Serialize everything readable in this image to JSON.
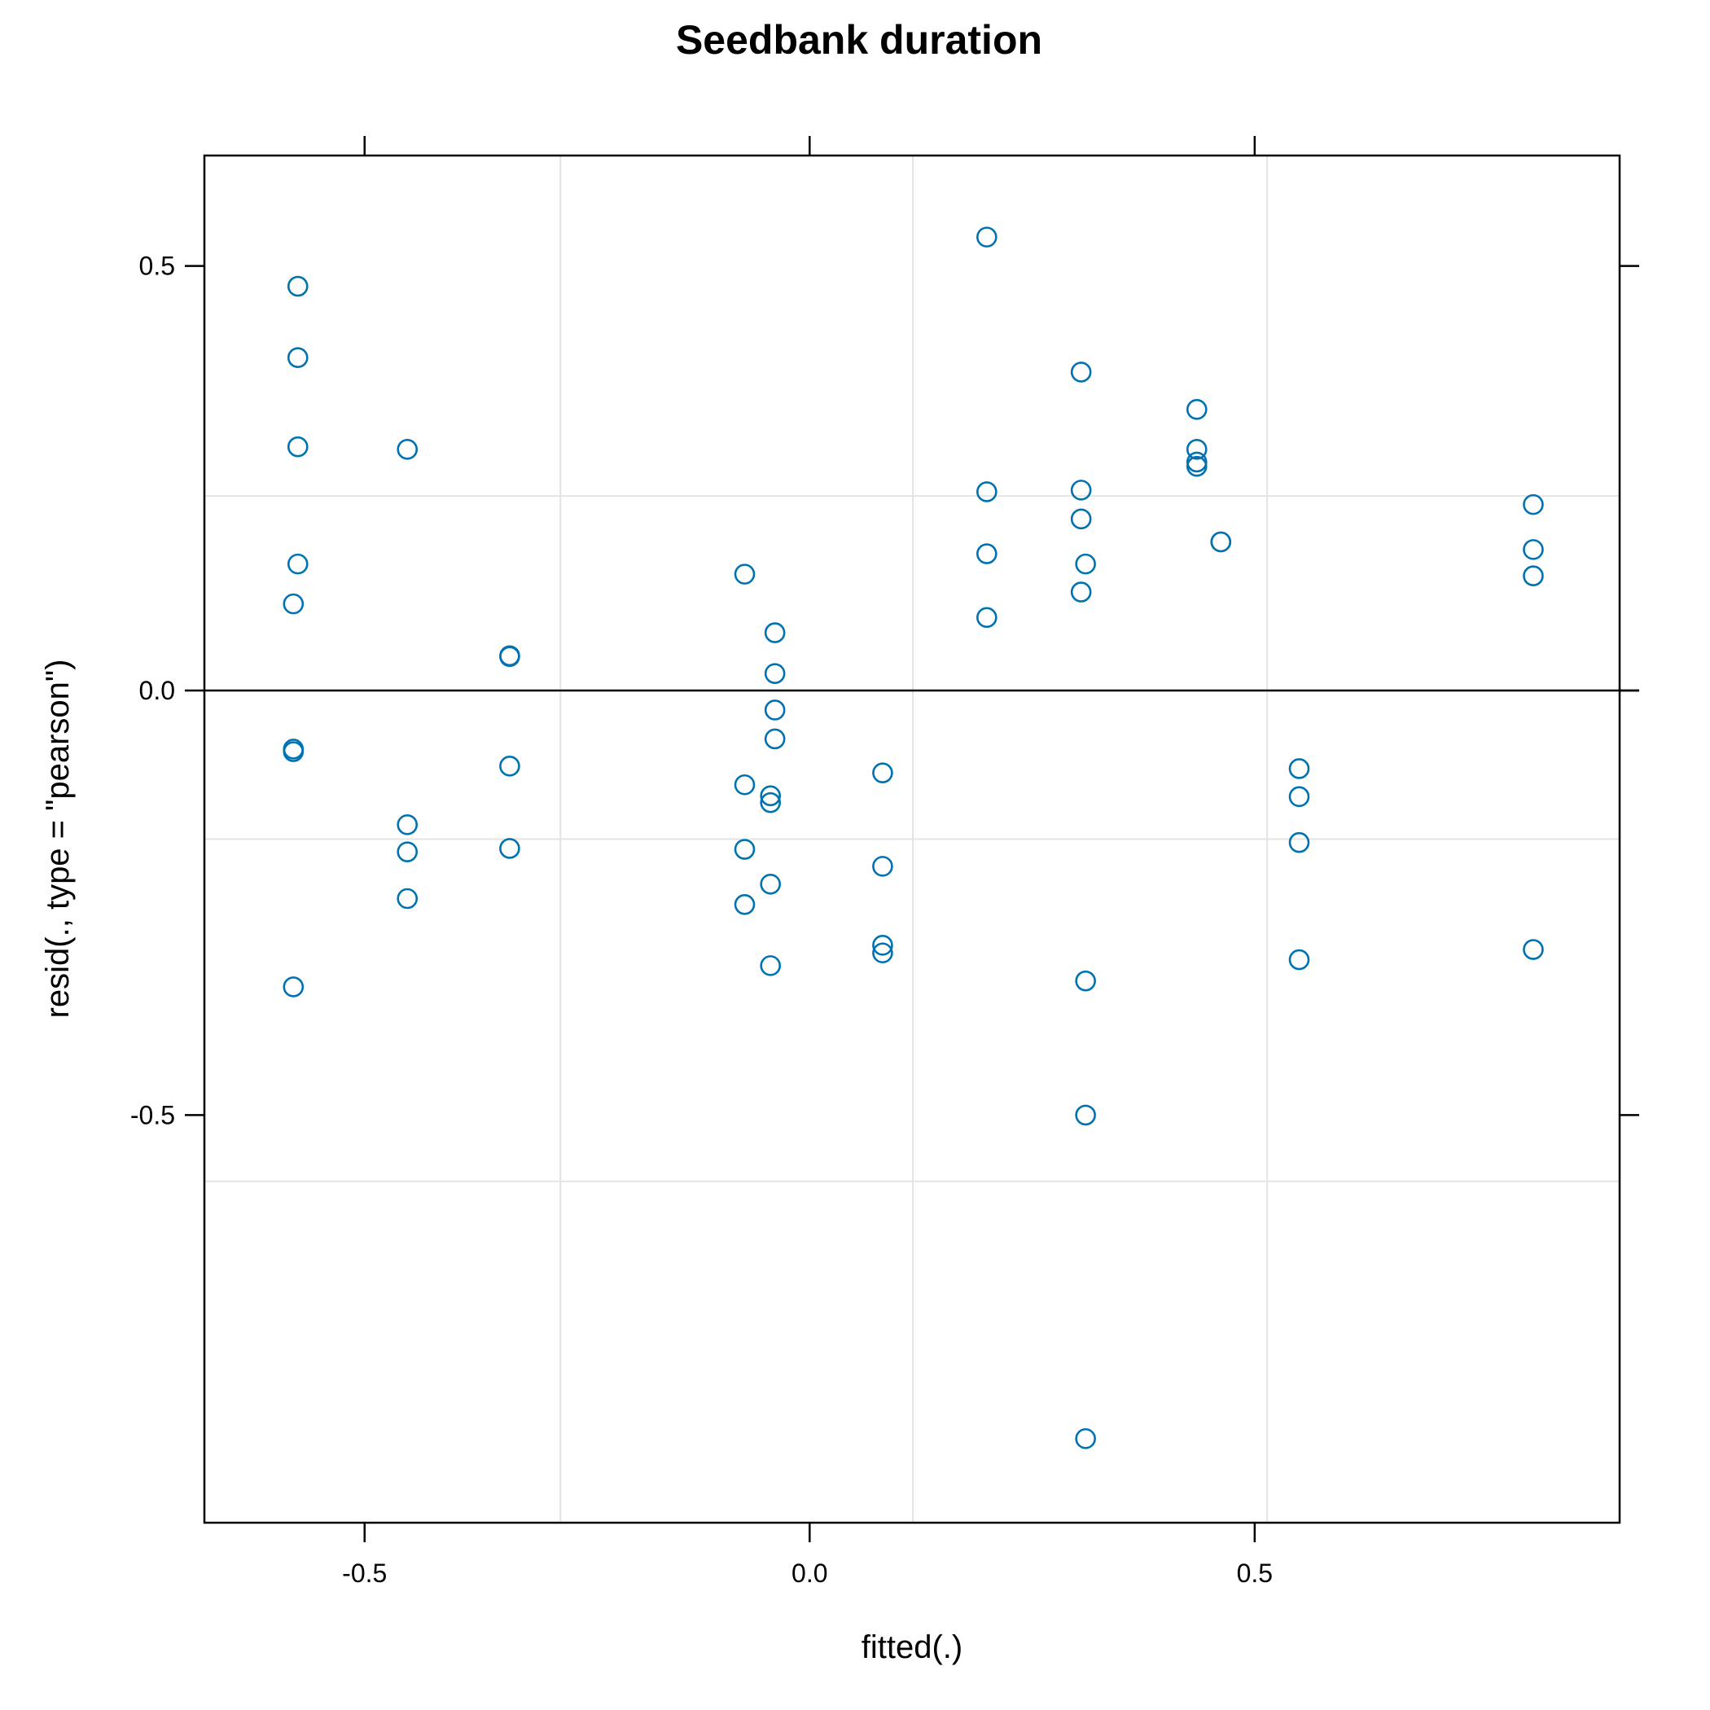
{
  "chart_data": {
    "type": "scatter",
    "title": "Seedbank duration",
    "xlabel": "fitted(.)",
    "ylabel": "resid(., type = \"pearson\")",
    "xlim": [
      -0.68,
      0.91
    ],
    "ylim": [
      -0.98,
      0.63
    ],
    "x_ticks": [
      -0.5,
      0.0,
      0.5
    ],
    "y_ticks": [
      -0.5,
      0.0,
      0.5
    ],
    "x_tick_labels": [
      "-0.5",
      "0.0",
      "0.5"
    ],
    "y_tick_labels": [
      "-0.5",
      "0.0",
      "0.5"
    ],
    "grid": true,
    "x_gridlines": [
      -0.28,
      0.116,
      0.514
    ],
    "y_gridlines": [
      0.229,
      -0.175,
      -0.578
    ],
    "reference_line_y": 0.0,
    "point_color": "#0072B2",
    "marker": "open-circle",
    "points": [
      {
        "x": -0.575,
        "y": 0.476
      },
      {
        "x": -0.575,
        "y": 0.392
      },
      {
        "x": -0.575,
        "y": 0.287
      },
      {
        "x": -0.575,
        "y": 0.149
      },
      {
        "x": -0.58,
        "y": 0.102
      },
      {
        "x": -0.58,
        "y": -0.069
      },
      {
        "x": -0.58,
        "y": -0.072
      },
      {
        "x": -0.58,
        "y": -0.349
      },
      {
        "x": -0.452,
        "y": 0.284
      },
      {
        "x": -0.452,
        "y": -0.158
      },
      {
        "x": -0.452,
        "y": -0.19
      },
      {
        "x": -0.452,
        "y": -0.245
      },
      {
        "x": -0.337,
        "y": 0.041
      },
      {
        "x": -0.337,
        "y": 0.04
      },
      {
        "x": -0.337,
        "y": -0.089
      },
      {
        "x": -0.337,
        "y": -0.186
      },
      {
        "x": -0.073,
        "y": 0.137
      },
      {
        "x": -0.073,
        "y": -0.111
      },
      {
        "x": -0.073,
        "y": -0.187
      },
      {
        "x": -0.073,
        "y": -0.252
      },
      {
        "x": -0.039,
        "y": 0.068
      },
      {
        "x": -0.039,
        "y": 0.02
      },
      {
        "x": -0.039,
        "y": -0.023
      },
      {
        "x": -0.039,
        "y": -0.057
      },
      {
        "x": -0.044,
        "y": -0.124
      },
      {
        "x": -0.044,
        "y": -0.132
      },
      {
        "x": -0.044,
        "y": -0.228
      },
      {
        "x": -0.044,
        "y": -0.324
      },
      {
        "x": 0.082,
        "y": -0.097
      },
      {
        "x": 0.082,
        "y": -0.207
      },
      {
        "x": 0.082,
        "y": -0.3
      },
      {
        "x": 0.082,
        "y": -0.309
      },
      {
        "x": 0.199,
        "y": 0.534
      },
      {
        "x": 0.199,
        "y": 0.234
      },
      {
        "x": 0.199,
        "y": 0.161
      },
      {
        "x": 0.199,
        "y": 0.086
      },
      {
        "x": 0.305,
        "y": 0.375
      },
      {
        "x": 0.305,
        "y": 0.236
      },
      {
        "x": 0.305,
        "y": 0.202
      },
      {
        "x": 0.31,
        "y": 0.149
      },
      {
        "x": 0.305,
        "y": 0.116
      },
      {
        "x": 0.31,
        "y": -0.342
      },
      {
        "x": 0.31,
        "y": -0.5
      },
      {
        "x": 0.31,
        "y": -0.881
      },
      {
        "x": 0.435,
        "y": 0.331
      },
      {
        "x": 0.435,
        "y": 0.284
      },
      {
        "x": 0.435,
        "y": 0.269
      },
      {
        "x": 0.435,
        "y": 0.264
      },
      {
        "x": 0.462,
        "y": 0.175
      },
      {
        "x": 0.462,
        "y": 0.175
      },
      {
        "x": 0.55,
        "y": -0.092
      },
      {
        "x": 0.55,
        "y": -0.125
      },
      {
        "x": 0.55,
        "y": -0.179
      },
      {
        "x": 0.55,
        "y": -0.317
      },
      {
        "x": 0.813,
        "y": 0.219
      },
      {
        "x": 0.813,
        "y": 0.166
      },
      {
        "x": 0.813,
        "y": 0.135
      },
      {
        "x": 0.813,
        "y": -0.305
      }
    ]
  }
}
